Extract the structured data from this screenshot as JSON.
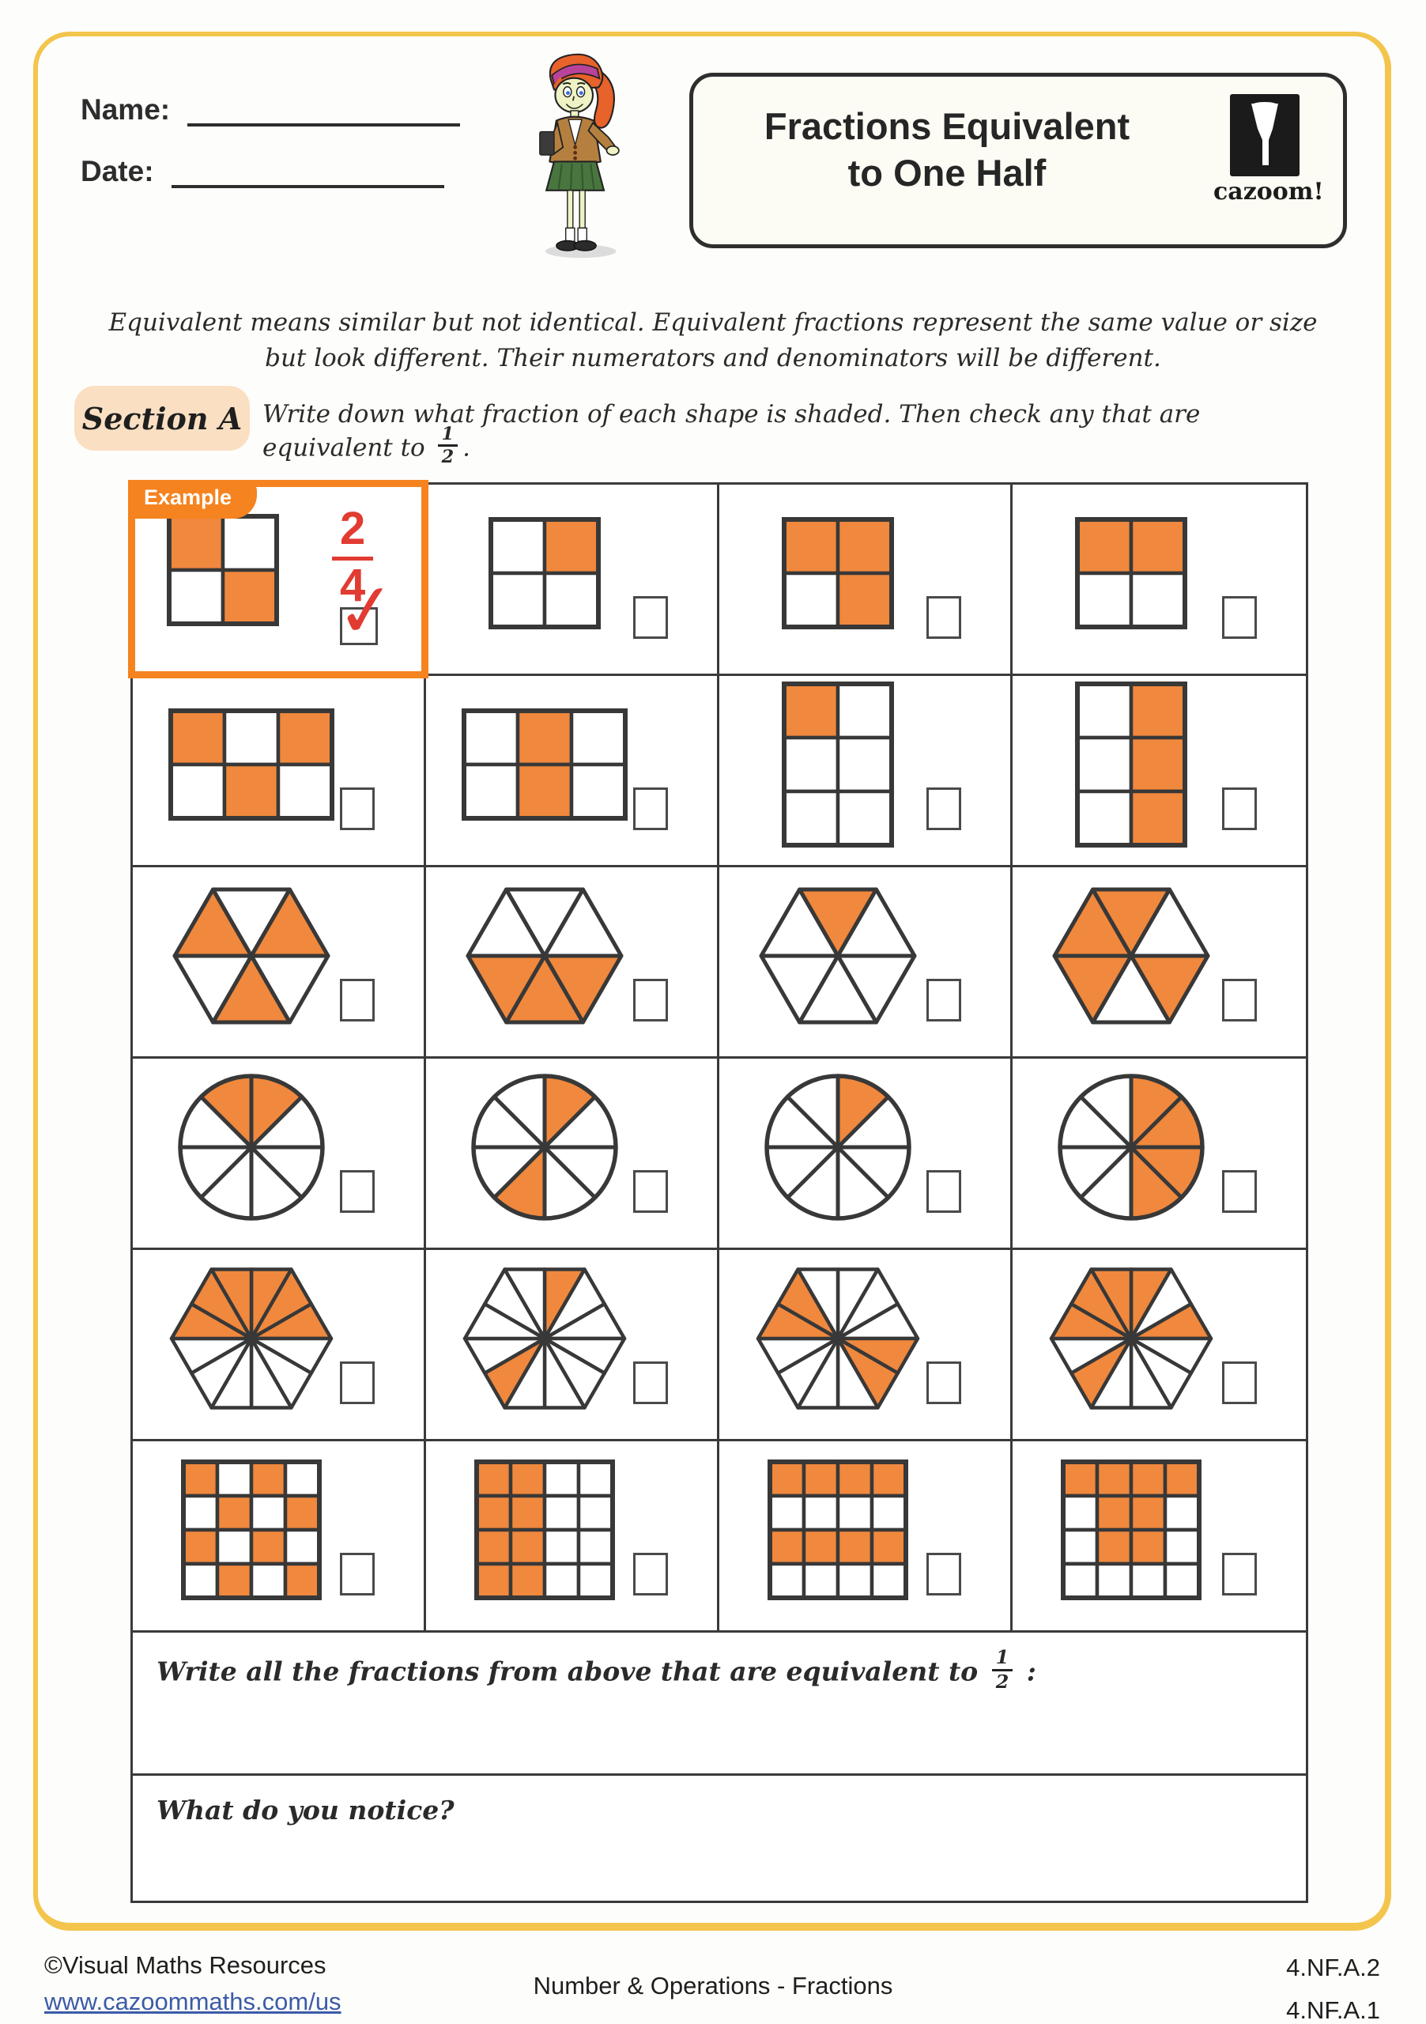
{
  "colors": {
    "shaded_orange": "#F0883D",
    "example_orange": "#F5831F",
    "handwriting_red": "#E23B32",
    "section_peach": "#FADFC2",
    "frame_yellow": "#F3C54D",
    "outline": "#383838",
    "link_blue": "#3C5BA8"
  },
  "header": {
    "name_label": "Name:",
    "date_label": "Date:",
    "title_line1": "Fractions Equivalent",
    "title_line2": "to One Half",
    "logo_text": "cazoom!"
  },
  "intro": {
    "line1": "Equivalent means similar but not identical. Equivalent fractions represent the same value or size",
    "line2": "but look different. Their numerators and denominators will be different."
  },
  "section_a": {
    "label": "Section A",
    "instruction": "Write down what fraction of each shape is shaded. Then check any that are equivalent to",
    "fraction_numerator": "1",
    "fraction_denominator": "2",
    "suffix": "."
  },
  "example": {
    "label": "Example",
    "fraction_numerator": "2",
    "fraction_denominator": "4",
    "checkmark": "✓"
  },
  "grid": {
    "rows": 6,
    "cols": 4,
    "cells": [
      {
        "shape": "square-grid",
        "cols": 2,
        "rows": 2,
        "total": 4,
        "shaded_count": 2,
        "shaded": [
          0,
          3
        ],
        "is_example": true
      },
      {
        "shape": "square-grid",
        "cols": 2,
        "rows": 2,
        "total": 4,
        "shaded_count": 1,
        "shaded": [
          1
        ],
        "is_example": false
      },
      {
        "shape": "square-grid",
        "cols": 2,
        "rows": 2,
        "total": 4,
        "shaded_count": 3,
        "shaded": [
          0,
          1,
          3
        ],
        "is_example": false
      },
      {
        "shape": "square-grid",
        "cols": 2,
        "rows": 2,
        "total": 4,
        "shaded_count": 2,
        "shaded": [
          0,
          1
        ],
        "is_example": false
      },
      {
        "shape": "square-grid",
        "cols": 3,
        "rows": 2,
        "total": 6,
        "shaded_count": 3,
        "shaded": [
          0,
          2,
          4
        ],
        "is_example": false
      },
      {
        "shape": "square-grid",
        "cols": 3,
        "rows": 2,
        "total": 6,
        "shaded_count": 2,
        "shaded": [
          1,
          4
        ],
        "is_example": false
      },
      {
        "shape": "square-grid",
        "cols": 2,
        "rows": 3,
        "total": 6,
        "shaded_count": 1,
        "shaded": [
          0
        ],
        "is_example": false
      },
      {
        "shape": "square-grid",
        "cols": 2,
        "rows": 3,
        "total": 6,
        "shaded_count": 3,
        "shaded": [
          1,
          3,
          5
        ],
        "is_example": false
      },
      {
        "shape": "hexagon-6",
        "total": 6,
        "shaded_count": 3,
        "shaded": [
          1,
          3,
          5
        ],
        "is_example": false
      },
      {
        "shape": "hexagon-6",
        "total": 6,
        "shaded_count": 3,
        "shaded": [
          0,
          1,
          2
        ],
        "is_example": false
      },
      {
        "shape": "hexagon-6",
        "total": 6,
        "shaded_count": 1,
        "shaded": [
          4
        ],
        "is_example": false
      },
      {
        "shape": "hexagon-6",
        "total": 6,
        "shaded_count": 4,
        "shaded": [
          0,
          2,
          3,
          4
        ],
        "is_example": false
      },
      {
        "shape": "circle-8",
        "total": 8,
        "shaded_count": 2,
        "shaded": [
          0,
          7
        ],
        "is_example": false
      },
      {
        "shape": "circle-8",
        "total": 8,
        "shaded_count": 2,
        "shaded": [
          0,
          4
        ],
        "is_example": false
      },
      {
        "shape": "circle-8",
        "total": 8,
        "shaded_count": 1,
        "shaded": [
          0
        ],
        "is_example": false
      },
      {
        "shape": "circle-8",
        "total": 8,
        "shaded_count": 4,
        "shaded": [
          0,
          1,
          2,
          3
        ],
        "is_example": false
      },
      {
        "shape": "hexagon-12",
        "total": 12,
        "shaded_count": 6,
        "shaded": [
          0,
          1,
          2,
          9,
          10,
          11
        ],
        "is_example": false
      },
      {
        "shape": "hexagon-12",
        "total": 12,
        "shaded_count": 2,
        "shaded": [
          0,
          7
        ],
        "is_example": false
      },
      {
        "shape": "hexagon-12",
        "total": 12,
        "shaded_count": 4,
        "shaded": [
          3,
          4,
          9,
          10
        ],
        "is_example": false
      },
      {
        "shape": "hexagon-12",
        "total": 12,
        "shaded_count": 6,
        "shaded": [
          0,
          2,
          7,
          9,
          10,
          11
        ],
        "is_example": false
      },
      {
        "shape": "square-grid",
        "cols": 4,
        "rows": 4,
        "total": 16,
        "shaded_count": 8,
        "shaded": [
          0,
          2,
          5,
          7,
          8,
          10,
          13,
          15
        ],
        "is_example": false
      },
      {
        "shape": "square-grid",
        "cols": 4,
        "rows": 4,
        "total": 16,
        "shaded_count": 8,
        "shaded": [
          0,
          1,
          4,
          5,
          8,
          9,
          12,
          13
        ],
        "is_example": false
      },
      {
        "shape": "square-grid",
        "cols": 4,
        "rows": 4,
        "total": 16,
        "shaded_count": 8,
        "shaded": [
          0,
          1,
          2,
          3,
          8,
          9,
          10,
          11
        ],
        "is_example": false
      },
      {
        "shape": "square-grid",
        "cols": 4,
        "rows": 4,
        "total": 16,
        "shaded_count": 8,
        "shaded": [
          0,
          1,
          2,
          3,
          5,
          6,
          9,
          10
        ],
        "is_example": false
      }
    ]
  },
  "prompts": {
    "equivalent": {
      "text": "Write all the fractions from above that are equivalent to",
      "fraction_numerator": "1",
      "fraction_denominator": "2",
      "suffix": " :"
    },
    "notice": {
      "text": "What do you notice?"
    }
  },
  "footer": {
    "copyright": "©Visual Maths Resources",
    "link": "www.cazoommaths.com/us",
    "center": "Number & Operations - Fractions",
    "standards": [
      "4.NF.A.2",
      "4.NF.A.1"
    ]
  }
}
